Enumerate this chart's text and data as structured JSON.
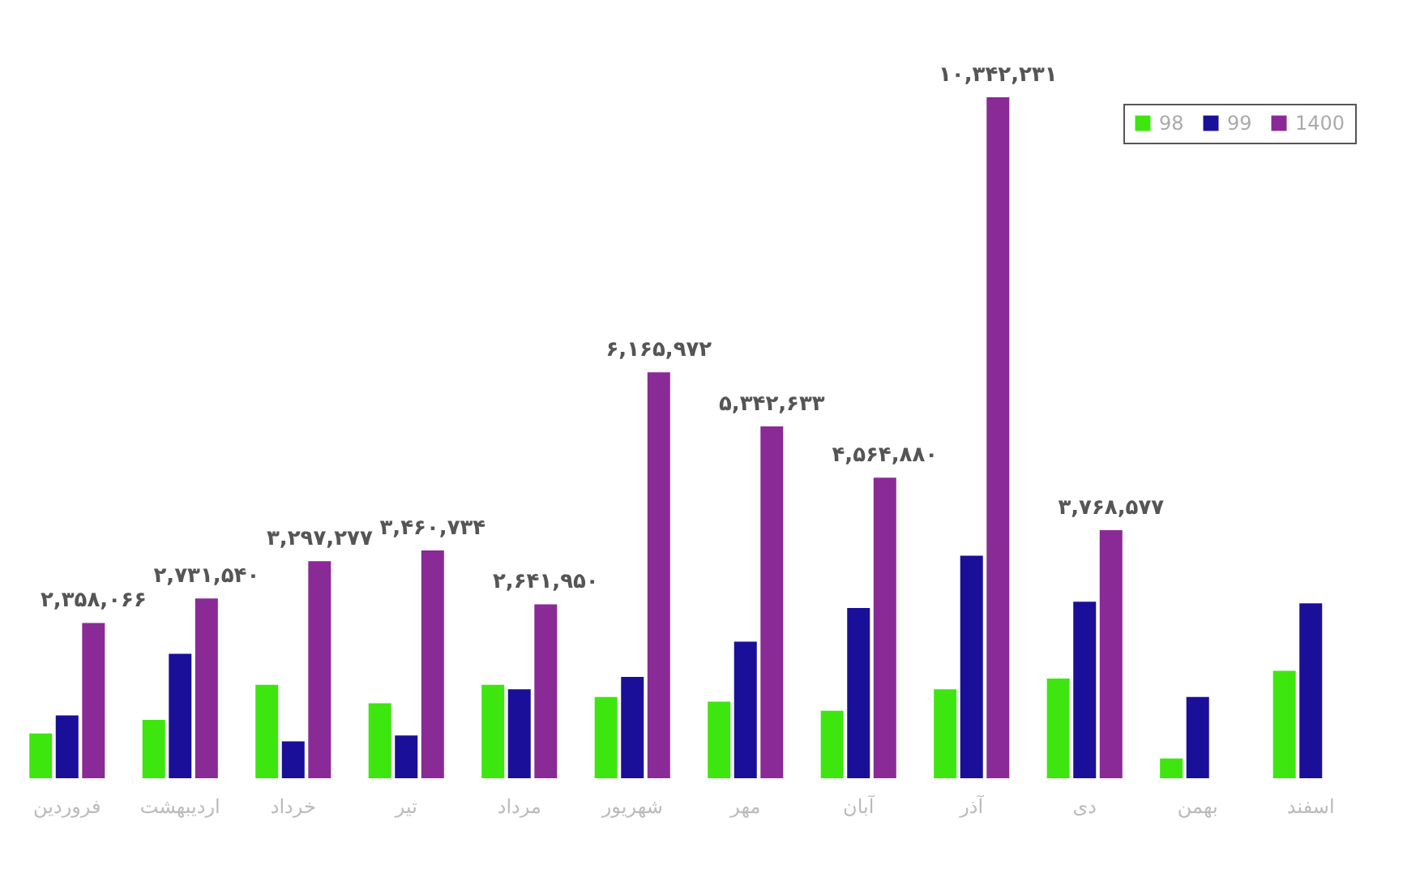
{
  "chart_data": {
    "type": "bar",
    "categories": [
      "فروردین",
      "اردیبهشت",
      "خرداد",
      "تیر",
      "مرداد",
      "شهریور",
      "مهر",
      "آبان",
      "آذر",
      "دی",
      "بهمن",
      "اسفند"
    ],
    "series": [
      {
        "name": "98",
        "color": "#3ee60f",
        "values": [
          680000,
          885000,
          1420000,
          1140000,
          1420000,
          1235000,
          1165000,
          1025000,
          1350000,
          1515000,
          300000,
          1630000
        ]
      },
      {
        "name": "99",
        "color": "#1a0f99",
        "values": [
          955000,
          1890000,
          560000,
          650000,
          1350000,
          1540000,
          2075000,
          2585000,
          3380000,
          2680000,
          1235000,
          2655000
        ]
      },
      {
        "name": "1400",
        "color": "#8a2a96",
        "values": [
          2358066,
          2731540,
          3297277,
          3460734,
          2641950,
          6165972,
          5342633,
          4564880,
          10342231,
          3768577,
          null,
          null
        ],
        "value_labels": [
          "۲,۳۵۸,۰۶۶",
          "۲,۷۳۱,۵۴۰",
          "۳,۲۹۷,۲۷۷",
          "۳,۴۶۰,۷۳۴",
          "۲,۶۴۱,۹۵۰",
          "۶,۱۶۵,۹۷۲",
          "۵,۳۴۲,۶۳۳",
          "۴,۵۶۴,۸۸۰",
          "۱۰,۳۴۲,۲۳۱",
          "۳,۷۶۸,۵۷۷",
          null,
          null
        ]
      }
    ],
    "legend": "top right",
    "tick_labels": "x",
    "grid": false
  }
}
